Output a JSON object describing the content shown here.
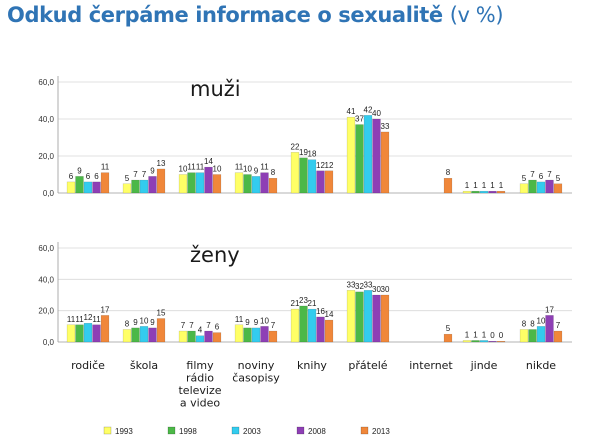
{
  "header": {
    "title": "Odkud čerpáme informace o sexualitě",
    "unit": "(v %)"
  },
  "chart_data": [
    {
      "type": "bar",
      "title": "muži",
      "ylim": [
        0,
        60
      ],
      "yticks": [
        "0,0",
        "20,0",
        "40,0",
        "60,0"
      ],
      "categories": [
        "rodiče",
        "škola",
        "filmy rádio televize a video",
        "noviny časopisy",
        "knihy",
        "přátelé",
        "internet",
        "jinde",
        "nikde"
      ],
      "series": [
        {
          "name": "1993",
          "color": "#ffff66",
          "values": [
            6,
            5,
            10,
            11,
            22,
            41,
            null,
            1,
            5
          ]
        },
        {
          "name": "1998",
          "color": "#4cb848",
          "values": [
            9,
            7,
            11,
            10,
            19,
            37,
            null,
            1,
            7
          ]
        },
        {
          "name": "2003",
          "color": "#33ccee",
          "values": [
            6,
            7,
            11,
            9,
            18,
            42,
            null,
            1,
            6
          ]
        },
        {
          "name": "2008",
          "color": "#8e3fb5",
          "values": [
            6,
            9,
            14,
            11,
            12,
            40,
            null,
            1,
            7
          ]
        },
        {
          "name": "2013",
          "color": "#f0873a",
          "values": [
            11,
            13,
            10,
            8,
            12,
            33,
            8,
            1,
            5
          ]
        }
      ]
    },
    {
      "type": "bar",
      "title": "ženy",
      "ylim": [
        0,
        60
      ],
      "yticks": [
        "0,0",
        "20,0",
        "40,0",
        "60,0"
      ],
      "categories": [
        "rodiče",
        "škola",
        "filmy rádio televize a video",
        "noviny časopisy",
        "knihy",
        "přátelé",
        "internet",
        "jinde",
        "nikde"
      ],
      "series": [
        {
          "name": "1993",
          "color": "#ffff66",
          "values": [
            11,
            8,
            7,
            11,
            21,
            33,
            null,
            1,
            8
          ]
        },
        {
          "name": "1998",
          "color": "#4cb848",
          "values": [
            11,
            9,
            7,
            9,
            23,
            32,
            null,
            1,
            8
          ]
        },
        {
          "name": "2003",
          "color": "#33ccee",
          "values": [
            12,
            10,
            4,
            9,
            21,
            33,
            null,
            1,
            10
          ]
        },
        {
          "name": "2008",
          "color": "#8e3fb5",
          "values": [
            11,
            9,
            7,
            10,
            16,
            30,
            null,
            0,
            17
          ]
        },
        {
          "name": "2013",
          "color": "#f0873a",
          "values": [
            17,
            15,
            6,
            7,
            14,
            30,
            5,
            0,
            7
          ]
        }
      ]
    }
  ],
  "category_labels": [
    [
      "rodiče"
    ],
    [
      "škola"
    ],
    [
      "filmy",
      "rádio",
      "televize",
      "a video"
    ],
    [
      "noviny",
      "časopisy"
    ],
    [
      "knihy"
    ],
    [
      "přátelé"
    ],
    [
      "internet"
    ],
    [
      "jinde"
    ],
    [
      "nikde"
    ]
  ],
  "legend": [
    "1993",
    "1998",
    "2003",
    "2008",
    "2013"
  ]
}
